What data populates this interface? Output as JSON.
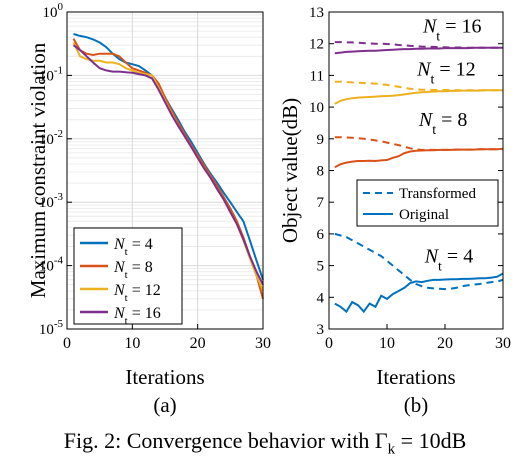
{
  "figure": {
    "caption": "Fig. 2: Convergence behavior with Γ",
    "caption_sub": "k",
    "caption_tail": " = 10dB"
  },
  "chart_data": [
    {
      "panel_label": "(a)",
      "type": "line",
      "scale": "log",
      "xlabel": "Iterations",
      "ylabel": "Maximum constraint violation",
      "xlim": [
        0,
        30
      ],
      "ylim_exp": [
        -5,
        0
      ],
      "xticks": [
        "0",
        "10",
        "20",
        "30"
      ],
      "grid": true,
      "legend_position": "bottom-left",
      "x": [
        1,
        2,
        3,
        4,
        5,
        6,
        7,
        8,
        9,
        10,
        11,
        12,
        13,
        14,
        15,
        16,
        17,
        18,
        19,
        20,
        21,
        22,
        23,
        24,
        25,
        26,
        27,
        28,
        29,
        30
      ],
      "series": [
        {
          "name": "N_t = 4",
          "name_main": "N",
          "name_sub": "t",
          "name_rest": " = 4",
          "color": "#0072BD",
          "values": [
            0.45,
            0.42,
            0.4,
            0.37,
            0.33,
            0.28,
            0.22,
            0.18,
            0.16,
            0.15,
            0.14,
            0.12,
            0.1,
            0.07,
            0.045,
            0.03,
            0.02,
            0.013,
            0.009,
            0.006,
            0.004,
            0.0028,
            0.002,
            0.0014,
            0.001,
            0.0007,
            0.0005,
            0.00025,
            0.00012,
            6e-05
          ]
        },
        {
          "name": "N_t = 8",
          "name_main": "N",
          "name_sub": "t",
          "name_rest": " = 8",
          "color": "#D95319",
          "values": [
            0.38,
            0.25,
            0.22,
            0.21,
            0.22,
            0.22,
            0.22,
            0.2,
            0.16,
            0.13,
            0.12,
            0.11,
            0.1,
            0.075,
            0.045,
            0.028,
            0.018,
            0.012,
            0.008,
            0.0055,
            0.0038,
            0.0026,
            0.0018,
            0.0012,
            0.0008,
            0.0005,
            0.00028,
            0.00014,
            7e-05,
            3e-05
          ]
        },
        {
          "name": "N_t = 12",
          "name_main": "N",
          "name_sub": "t",
          "name_rest": " = 12",
          "color": "#EDB120",
          "values": [
            0.33,
            0.2,
            0.18,
            0.17,
            0.17,
            0.16,
            0.16,
            0.15,
            0.13,
            0.12,
            0.11,
            0.105,
            0.1,
            0.065,
            0.04,
            0.025,
            0.016,
            0.011,
            0.0075,
            0.005,
            0.0034,
            0.0024,
            0.0016,
            0.0011,
            0.0007,
            0.00045,
            0.00025,
            0.00013,
            7e-05,
            4e-05
          ]
        },
        {
          "name": "N_t = 16",
          "name_main": "N",
          "name_sub": "t",
          "name_rest": " = 16",
          "color": "#7E2F8E",
          "values": [
            0.3,
            0.25,
            0.2,
            0.16,
            0.13,
            0.12,
            0.115,
            0.115,
            0.112,
            0.11,
            0.105,
            0.1,
            0.09,
            0.06,
            0.038,
            0.024,
            0.016,
            0.011,
            0.0075,
            0.005,
            0.0034,
            0.0024,
            0.0016,
            0.0011,
            0.0007,
            0.00045,
            0.00026,
            0.00014,
            8e-05,
            5e-05
          ]
        }
      ]
    },
    {
      "panel_label": "(b)",
      "type": "line",
      "scale": "linear",
      "xlabel": "Iterations",
      "ylabel": "Object value(dB)",
      "xlim": [
        0,
        30
      ],
      "ylim": [
        3,
        13
      ],
      "xticks": [
        "0",
        "10",
        "20",
        "30"
      ],
      "yticks": [
        "3",
        "4",
        "5",
        "6",
        "7",
        "8",
        "9",
        "10",
        "11",
        "12",
        "13"
      ],
      "grid": false,
      "legend_position": "right-middle",
      "legend": [
        {
          "label": "Transformed",
          "style": "dashed"
        },
        {
          "label": "Original",
          "style": "solid"
        }
      ],
      "x": [
        1,
        2,
        3,
        4,
        5,
        6,
        7,
        8,
        9,
        10,
        11,
        12,
        13,
        14,
        15,
        16,
        17,
        18,
        19,
        20,
        21,
        22,
        23,
        24,
        25,
        26,
        27,
        28,
        29,
        30
      ],
      "annotations": [
        {
          "main": "N",
          "sub": "t",
          "rest": " = 16",
          "color": "#7E2F8E",
          "x": 16.2,
          "y": 12.35
        },
        {
          "main": "N",
          "sub": "t",
          "rest": " = 12",
          "color": "#EDB120",
          "x": 15.2,
          "y": 11.0
        },
        {
          "main": "N",
          "sub": "t",
          "rest": " = 8",
          "color": "#D95319",
          "x": 15.5,
          "y": 9.4
        },
        {
          "main": "N",
          "sub": "t",
          "rest": " = 4",
          "color": "#0072BD",
          "x": 16.5,
          "y": 5.1
        }
      ],
      "series": [
        {
          "name": "N_t = 16 Transformed",
          "color": "#7E2F8E",
          "dashed": true,
          "values": [
            12.05,
            12.05,
            12.04,
            12.04,
            12.03,
            12.02,
            12.01,
            12.0,
            12.0,
            11.99,
            11.98,
            11.96,
            11.95,
            11.93,
            11.92,
            11.91,
            11.9,
            11.9,
            11.89,
            11.89,
            11.88,
            11.88,
            11.88,
            11.87,
            11.87,
            11.87,
            11.87,
            11.87,
            11.87,
            11.87
          ]
        },
        {
          "name": "N_t = 16 Original",
          "color": "#7E2F8E",
          "dashed": false,
          "values": [
            11.7,
            11.72,
            11.74,
            11.75,
            11.76,
            11.77,
            11.78,
            11.78,
            11.79,
            11.8,
            11.81,
            11.82,
            11.83,
            11.83,
            11.84,
            11.84,
            11.85,
            11.85,
            11.85,
            11.86,
            11.86,
            11.86,
            11.86,
            11.86,
            11.87,
            11.87,
            11.87,
            11.87,
            11.87,
            11.87
          ]
        },
        {
          "name": "N_t = 12 Transformed",
          "color": "#EDB120",
          "dashed": true,
          "values": [
            10.8,
            10.8,
            10.79,
            10.78,
            10.77,
            10.76,
            10.75,
            10.74,
            10.72,
            10.7,
            10.67,
            10.64,
            10.61,
            10.58,
            10.56,
            10.55,
            10.55,
            10.54,
            10.54,
            10.54,
            10.54,
            10.53,
            10.53,
            10.53,
            10.53,
            10.53,
            10.53,
            10.53,
            10.53,
            10.53
          ]
        },
        {
          "name": "N_t = 12 Original",
          "color": "#EDB120",
          "dashed": false,
          "values": [
            10.1,
            10.2,
            10.25,
            10.28,
            10.3,
            10.31,
            10.32,
            10.33,
            10.34,
            10.35,
            10.36,
            10.38,
            10.4,
            10.43,
            10.45,
            10.47,
            10.48,
            10.49,
            10.5,
            10.5,
            10.51,
            10.51,
            10.52,
            10.52,
            10.52,
            10.52,
            10.53,
            10.53,
            10.53,
            10.53
          ]
        },
        {
          "name": "N_t = 8 Transformed",
          "color": "#D95319",
          "dashed": true,
          "values": [
            9.05,
            9.05,
            9.04,
            9.03,
            9.02,
            9.0,
            8.98,
            8.95,
            8.92,
            8.88,
            8.84,
            8.8,
            8.75,
            8.7,
            8.67,
            8.65,
            8.65,
            8.65,
            8.65,
            8.65,
            8.65,
            8.66,
            8.66,
            8.66,
            8.66,
            8.67,
            8.67,
            8.67,
            8.67,
            8.68
          ]
        },
        {
          "name": "N_t = 8 Original",
          "color": "#D95319",
          "dashed": false,
          "values": [
            8.1,
            8.2,
            8.25,
            8.28,
            8.3,
            8.3,
            8.31,
            8.3,
            8.32,
            8.33,
            8.4,
            8.45,
            8.55,
            8.6,
            8.62,
            8.63,
            8.64,
            8.64,
            8.65,
            8.65,
            8.65,
            8.66,
            8.66,
            8.66,
            8.66,
            8.67,
            8.67,
            8.67,
            8.67,
            8.68
          ]
        },
        {
          "name": "N_t = 4 Transformed",
          "color": "#0072BD",
          "dashed": true,
          "values": [
            6.0,
            5.95,
            5.9,
            5.8,
            5.7,
            5.6,
            5.5,
            5.4,
            5.3,
            5.15,
            5.0,
            4.85,
            4.7,
            4.55,
            4.42,
            4.35,
            4.3,
            4.28,
            4.27,
            4.26,
            4.27,
            4.3,
            4.35,
            4.38,
            4.4,
            4.42,
            4.45,
            4.48,
            4.5,
            4.55
          ]
        },
        {
          "name": "N_t = 4 Original",
          "color": "#0072BD",
          "dashed": false,
          "values": [
            3.8,
            3.7,
            3.55,
            3.85,
            3.75,
            3.55,
            3.8,
            3.7,
            4.05,
            3.95,
            4.1,
            4.2,
            4.3,
            4.45,
            4.5,
            4.48,
            4.52,
            4.55,
            4.55,
            4.56,
            4.57,
            4.57,
            4.58,
            4.58,
            4.59,
            4.6,
            4.6,
            4.62,
            4.65,
            4.75
          ]
        }
      ]
    }
  ]
}
